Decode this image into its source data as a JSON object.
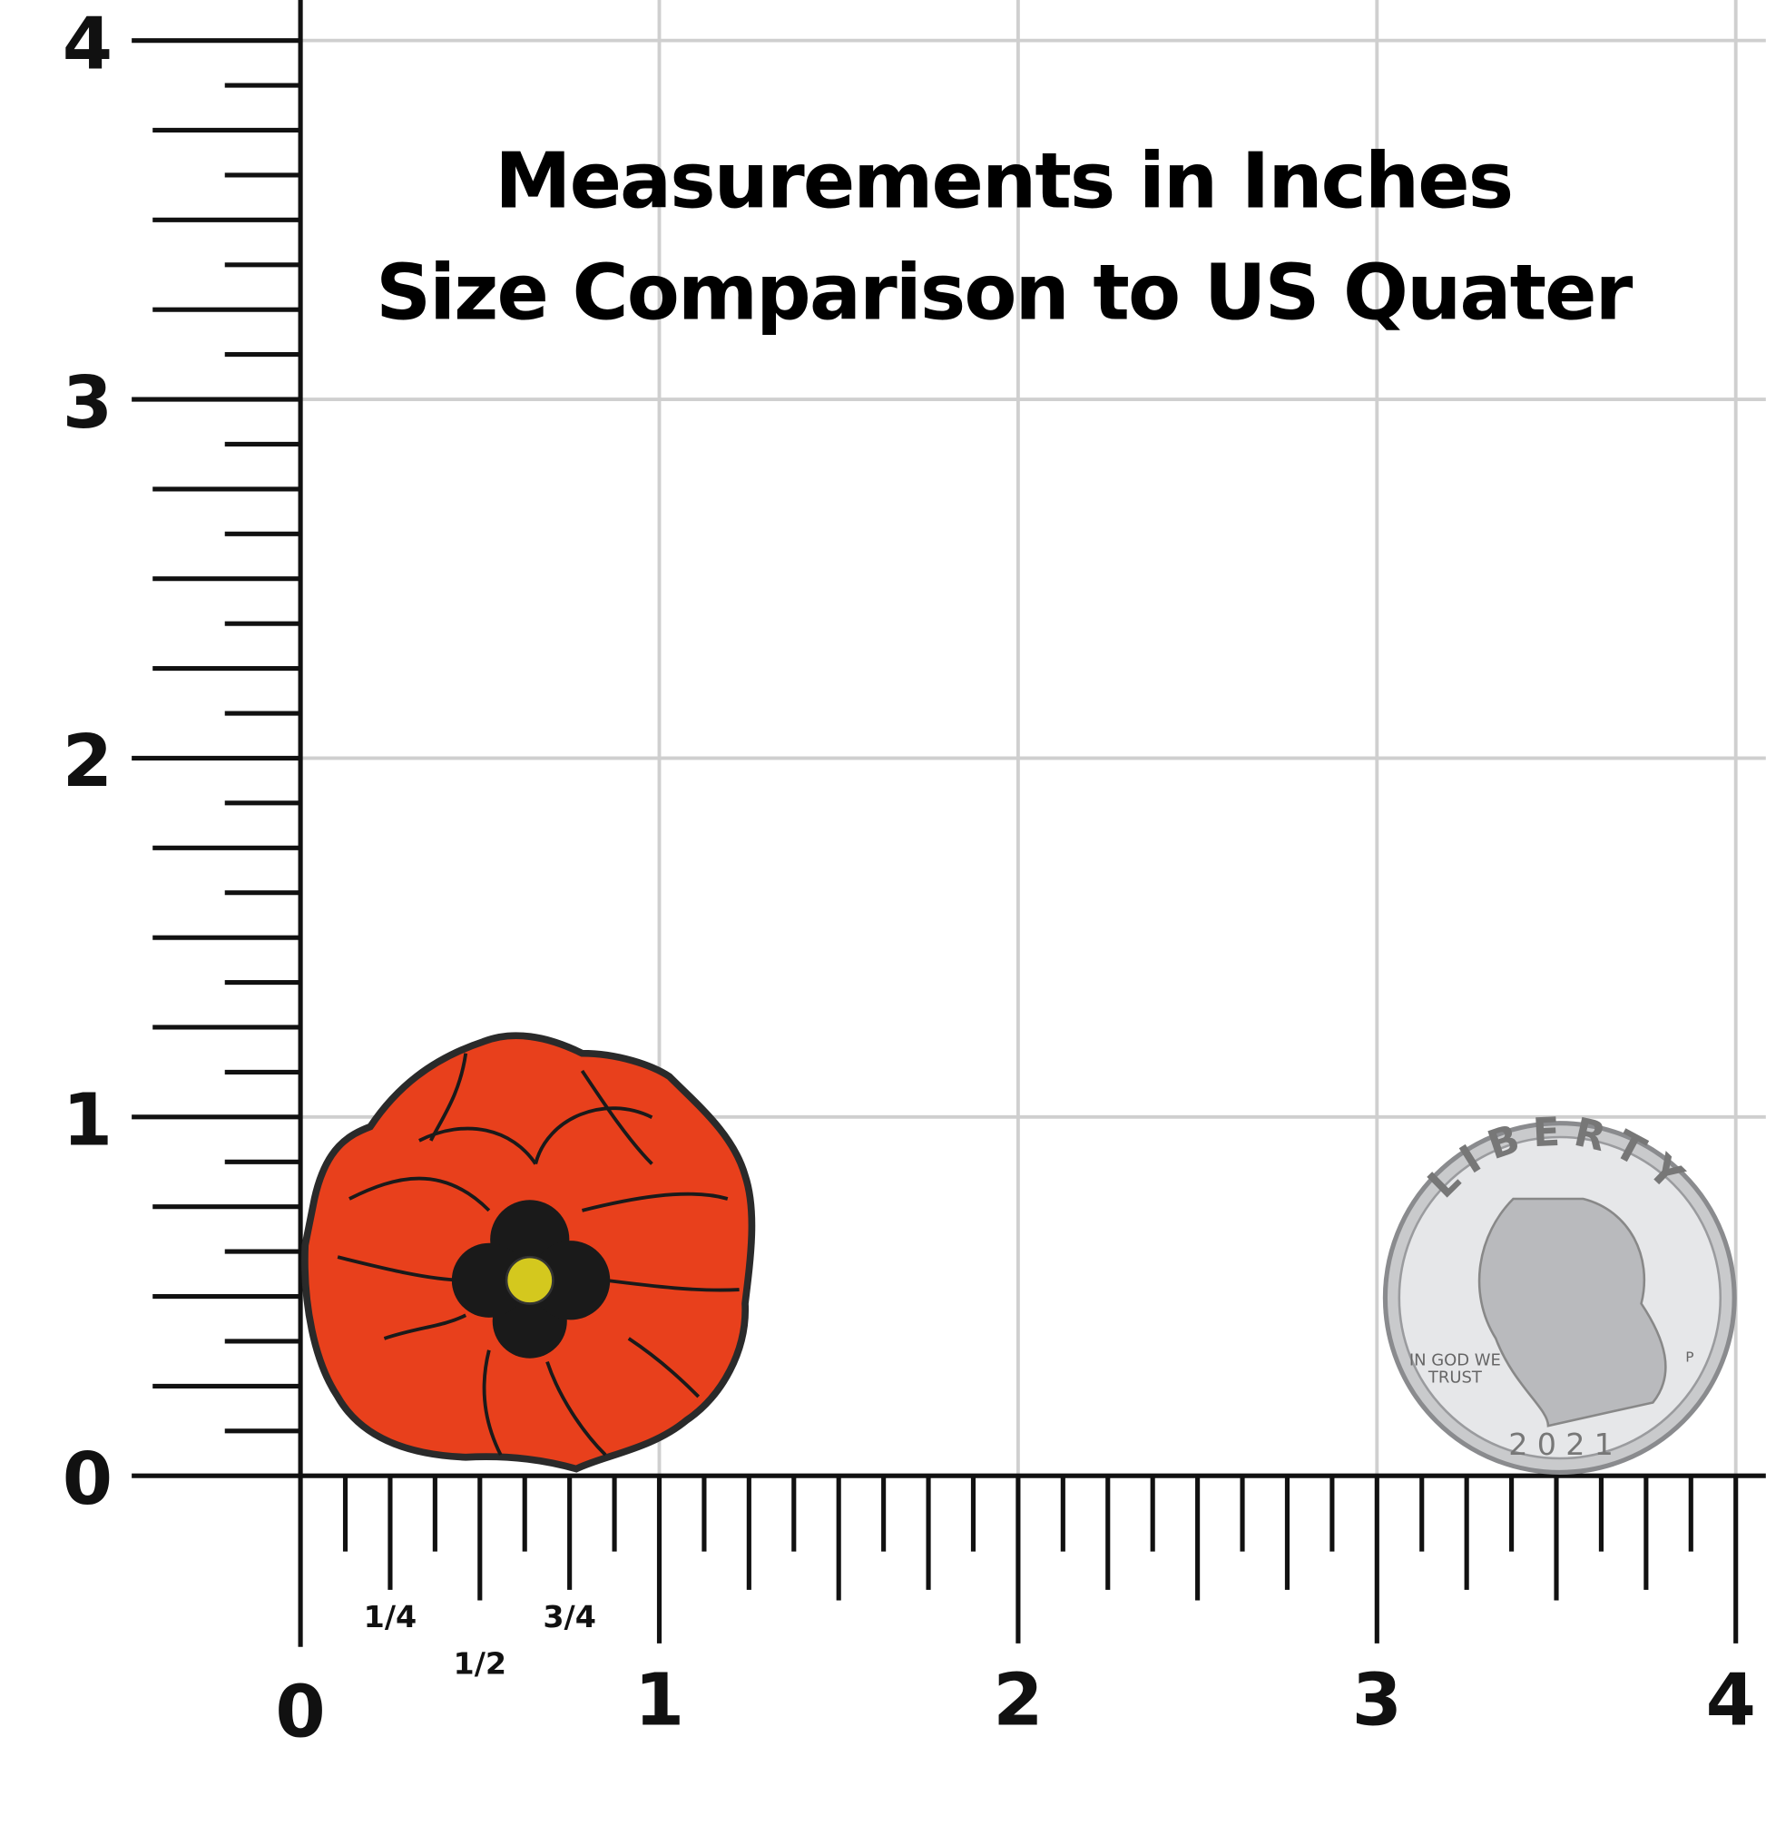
{
  "title": {
    "line1": "Measurements in Inches",
    "line2": "Size Comparison to US Quater"
  },
  "x_axis": {
    "labels": [
      "0",
      "1",
      "2",
      "3",
      "4"
    ],
    "fractions": [
      "1/4",
      "1/2",
      "3/4"
    ]
  },
  "y_axis": {
    "labels": [
      "0",
      "1",
      "2",
      "3",
      "4"
    ]
  },
  "coin": {
    "word": "LIBERTY",
    "motto_line1": "IN GOD WE",
    "motto_line2": "TRUST",
    "year": "2021",
    "mint": "P"
  }
}
